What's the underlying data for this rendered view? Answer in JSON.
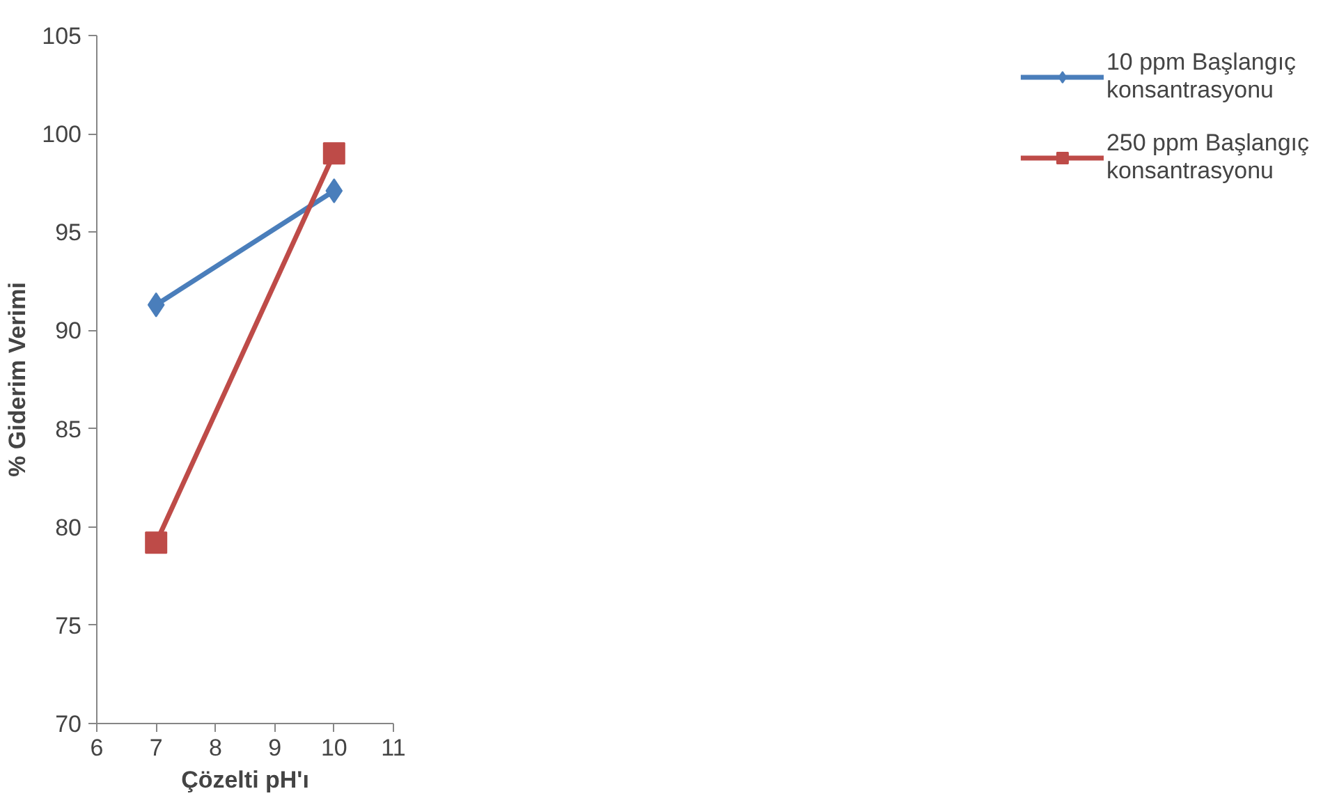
{
  "chart_data": {
    "type": "line",
    "xlabel": "Çözelti pH'ı",
    "ylabel": "% Giderim Verimi",
    "x": [
      7,
      10
    ],
    "series": [
      {
        "name": "10 ppm Başlangıç konsantrasyonu",
        "color": "#4a7ebb",
        "values": [
          91.3,
          97.1
        ],
        "marker": "diamond"
      },
      {
        "name": "250 ppm Başlangıç konsantrasyonu",
        "color": "#be4b48",
        "values": [
          79.2,
          99.0
        ],
        "marker": "square"
      }
    ],
    "xlim": [
      6,
      11
    ],
    "xticks": [
      6,
      7,
      8,
      9,
      10,
      11
    ],
    "ylim": [
      70,
      105
    ],
    "yticks": [
      70,
      75,
      80,
      85,
      90,
      95,
      100,
      105
    ],
    "grid": false,
    "legend": "right",
    "line_style": "solid"
  }
}
